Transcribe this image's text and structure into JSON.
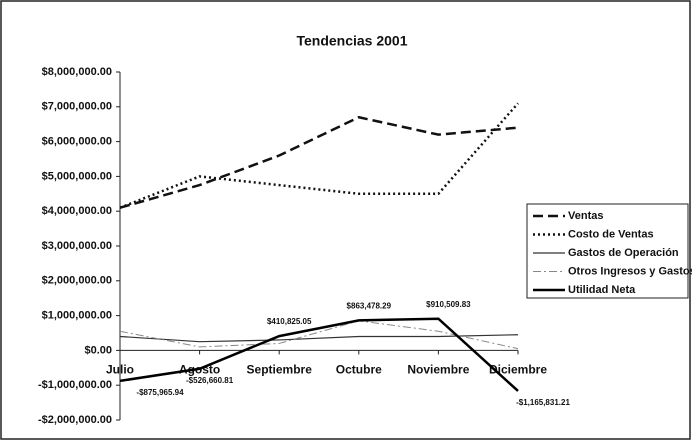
{
  "chart_data": {
    "type": "line",
    "title": "Tendencias 2001",
    "categories": [
      "Julio",
      "Agosto",
      "Septiembre",
      "Octubre",
      "Noviembre",
      "Diciembre"
    ],
    "series": [
      {
        "name": "Ventas",
        "color": "#111111",
        "dash": "dashed",
        "values": [
          4100000,
          4750000,
          5600000,
          6700000,
          6200000,
          6400000
        ]
      },
      {
        "name": "Costo de Ventas",
        "color": "#111111",
        "dash": "dotted",
        "values": [
          4100000,
          5000000,
          4750000,
          4500000,
          4500000,
          7100000
        ]
      },
      {
        "name": "Gastos de Operación",
        "color": "#333333",
        "dash": "solid",
        "values": [
          400000,
          250000,
          300000,
          400000,
          400000,
          450000
        ]
      },
      {
        "name": "Otros Ingresos y Gastos",
        "color": "#888888",
        "dash": "dashdot",
        "values": [
          550000,
          100000,
          200000,
          850000,
          550000,
          50000
        ]
      },
      {
        "name": "Utilidad Neta",
        "color": "#000000",
        "dash": "thick",
        "values": [
          -875965.94,
          -526660.81,
          410825.05,
          863478.29,
          910509.83,
          -1165831.21
        ],
        "value_labels": [
          "-$875,965.94",
          "-$526,660.81",
          "$410,825.05",
          "$863,478.29",
          "$910,509.83",
          "-$1,165,831.21"
        ]
      }
    ],
    "ylim": [
      -2000000,
      8000000
    ],
    "yticks": [
      {
        "value": 8000000,
        "label": "$8,000,000.00"
      },
      {
        "value": 7000000,
        "label": "$7,000,000.00"
      },
      {
        "value": 6000000,
        "label": "$6,000,000.00"
      },
      {
        "value": 5000000,
        "label": "$5,000,000.00"
      },
      {
        "value": 4000000,
        "label": "$4,000,000.00"
      },
      {
        "value": 3000000,
        "label": "$3,000,000.00"
      },
      {
        "value": 2000000,
        "label": "$2,000,000.00"
      },
      {
        "value": 1000000,
        "label": "$1,000,000.00"
      },
      {
        "value": 0,
        "label": "$0.00"
      },
      {
        "value": -1000000,
        "label": "-$1,000,000.00"
      },
      {
        "value": -2000000,
        "label": "-$2,000,000.00"
      }
    ],
    "legend": "right"
  }
}
